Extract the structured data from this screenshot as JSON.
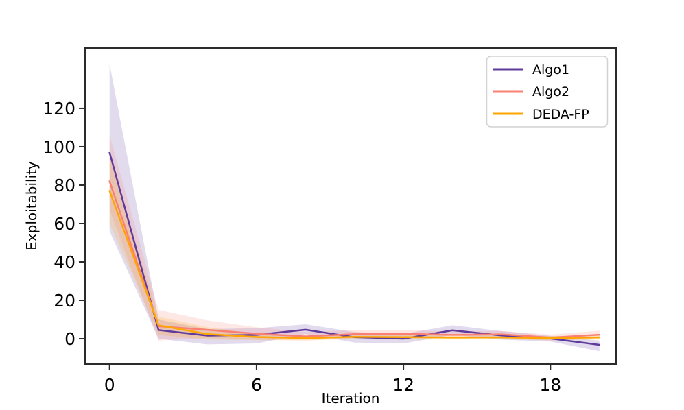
{
  "figure": {
    "background": "#ffffff",
    "spine_color": "#2b2b2b",
    "legend_border_color": "#d2d2d2"
  },
  "chart_data": {
    "type": "line",
    "title": "",
    "xlabel": "Iteration",
    "ylabel": "Exploitability",
    "x": [
      0,
      2,
      4,
      6,
      8,
      10,
      12,
      14,
      16,
      18,
      20
    ],
    "xticks": [
      0,
      6,
      12,
      18
    ],
    "yticks": [
      0,
      20,
      40,
      60,
      80,
      100,
      120
    ],
    "xlim": [
      -1,
      20.68
    ],
    "ylim": [
      -13.2,
      151.4
    ],
    "grid": false,
    "legend_position": "upper right",
    "band_opacity": 0.18,
    "series": [
      {
        "name": "Algo1",
        "color": "#5D3A9B",
        "values": [
          97,
          4.5,
          1.6,
          2.0,
          4.7,
          0.8,
          0.0,
          4.4,
          1.7,
          0.1,
          -3.2
        ],
        "band_lower": [
          56,
          0,
          -3,
          -2.5,
          2.5,
          -2,
          -2.5,
          2,
          -0.5,
          -1.5,
          -6.5
        ],
        "band_upper": [
          143,
          10,
          5,
          5.5,
          7.5,
          3.5,
          2.5,
          7,
          4,
          1.5,
          -1
        ]
      },
      {
        "name": "Algo2",
        "color": "#FA8072",
        "values": [
          82,
          6.5,
          4.6,
          2.6,
          1.2,
          2.4,
          2.6,
          2.0,
          2.3,
          0.6,
          2.1
        ],
        "band_lower": [
          67,
          -1,
          0.5,
          -0.5,
          -1,
          0.3,
          0.5,
          0.3,
          0.5,
          -1,
          0.2
        ],
        "band_upper": [
          106,
          15,
          9.5,
          6,
          3.5,
          4.5,
          4.5,
          3.8,
          4,
          2.2,
          4.2
        ]
      },
      {
        "name": "DEDA-FP",
        "color": "#FFA500",
        "values": [
          77,
          7.0,
          2.4,
          0.9,
          0.3,
          1.0,
          0.8,
          0.6,
          0.7,
          0.3,
          0.7
        ],
        "band_lower": [
          60,
          2,
          -0.5,
          -0.8,
          -0.8,
          -0.3,
          -0.5,
          -0.4,
          -0.4,
          -0.8,
          -0.5
        ],
        "band_upper": [
          95,
          11.5,
          6,
          2.6,
          1.4,
          2.2,
          2.0,
          1.6,
          1.8,
          1.4,
          2.0
        ]
      }
    ]
  },
  "legend": {
    "items": [
      "Algo1",
      "Algo2",
      "DEDA-FP"
    ]
  }
}
